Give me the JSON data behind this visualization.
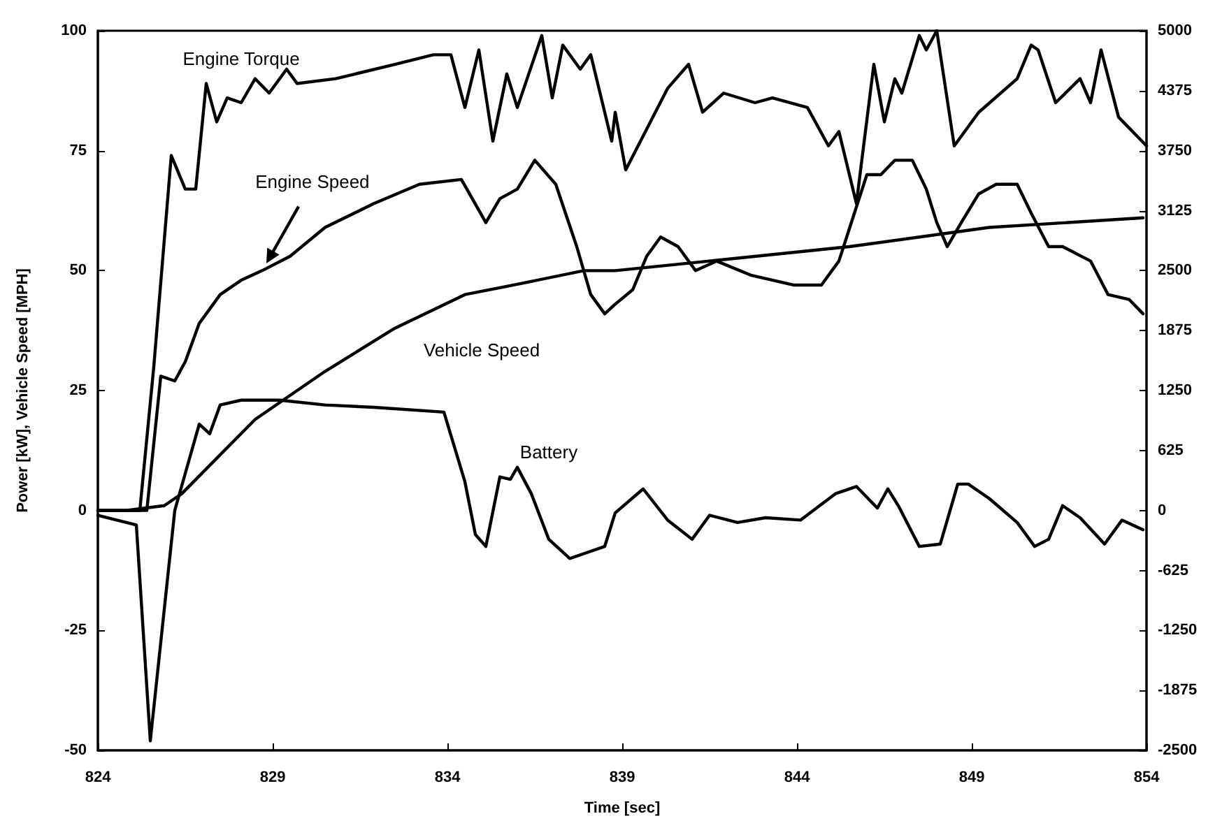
{
  "chart_data": {
    "type": "line",
    "xlabel": "Time [sec]",
    "ylabel": "Power [kW], Vehicle Speed [MPH]",
    "xlim": [
      824,
      854
    ],
    "xticks": [
      824,
      829,
      834,
      839,
      844,
      849,
      854
    ],
    "ylim": [
      -50,
      100
    ],
    "yticks": [
      -50,
      -25,
      0,
      25,
      50,
      75,
      100
    ],
    "y2lim": [
      -2500,
      5000
    ],
    "y2ticks": [
      -2500,
      -1875,
      -1250,
      -625,
      0,
      625,
      1250,
      1875,
      2500,
      3125,
      3750,
      4375,
      5000
    ],
    "grid": false,
    "legend": false,
    "marker": "none",
    "line_style": "solid",
    "series": [
      {
        "name": "Engine Torque",
        "color": "#000000",
        "x": [
          824,
          825.2,
          825.6,
          826.1,
          826.5,
          826.8,
          827.1,
          827.4,
          827.7,
          828.1,
          828.5,
          828.9,
          829.4,
          829.7,
          830.8,
          832.5,
          833.6,
          834.1,
          834.5,
          834.9,
          835.3,
          835.7,
          836.0,
          836.7,
          837.0,
          837.3,
          837.8,
          838.1,
          838.7,
          838.8,
          839.1,
          840.3,
          840.9,
          841.3,
          841.9,
          842.8,
          843.3,
          844.3,
          844.9,
          845.2,
          845.7,
          846.2,
          846.5,
          846.8,
          847.0,
          847.5,
          847.7,
          848.0,
          848.5,
          849.2,
          850.3,
          850.7,
          850.9,
          851.4,
          852.1,
          852.4,
          852.7,
          853.2,
          854
        ],
        "values": [
          0,
          0,
          30,
          74,
          67,
          67,
          89,
          81,
          86,
          85,
          90,
          87,
          92,
          89,
          90,
          93,
          95,
          95,
          84,
          96,
          77,
          91,
          84,
          99,
          86,
          97,
          92,
          95,
          77,
          83,
          71,
          88,
          93,
          83,
          87,
          85,
          86,
          84,
          76,
          79,
          64,
          93,
          81,
          90,
          87,
          99,
          96,
          100,
          76,
          83,
          90,
          97,
          96,
          85,
          90,
          85,
          96,
          82,
          76
        ]
      },
      {
        "name": "Engine Speed",
        "color": "#000000",
        "axis": "y2",
        "x": [
          824,
          825.4,
          825.8,
          826.2,
          826.5,
          826.9,
          827.5,
          828.1,
          828.7,
          829.5,
          830.5,
          831.9,
          833.2,
          834.4,
          835.1,
          835.5,
          836.0,
          836.5,
          837.1,
          837.7,
          838.1,
          838.5,
          838.8,
          839.3,
          839.7,
          840.1,
          840.6,
          841.1,
          841.7,
          842.7,
          843.9,
          844.7,
          845.2,
          845.6,
          846.0,
          846.4,
          846.8,
          847.3,
          847.7,
          848.0,
          848.3,
          848.7,
          849.2,
          849.7,
          850.3,
          850.7,
          851.2,
          851.6,
          852.4,
          852.9,
          853.5,
          853.9
        ],
        "values": [
          0,
          0,
          1400,
          1350,
          1550,
          1950,
          2250,
          2400,
          2500,
          2650,
          2950,
          3200,
          3400,
          3450,
          3000,
          3250,
          3350,
          3650,
          3400,
          2750,
          2250,
          2050,
          2150,
          2300,
          2650,
          2850,
          2750,
          2500,
          2600,
          2450,
          2350,
          2350,
          2600,
          3050,
          3500,
          3500,
          3650,
          3650,
          3350,
          3000,
          2750,
          3000,
          3300,
          3400,
          3400,
          3100,
          2750,
          2750,
          2600,
          2250,
          2200,
          2050
        ]
      },
      {
        "name": "Vehicle Speed",
        "color": "#000000",
        "x": [
          824,
          824.8,
          825.9,
          826.4,
          828.5,
          830.5,
          832.5,
          834.5,
          835.9,
          837.9,
          838.8,
          841.5,
          845.5,
          849.5,
          853.9
        ],
        "values": [
          0,
          0,
          1,
          3.5,
          19,
          29,
          38,
          45,
          47,
          50,
          50,
          52,
          55,
          59,
          61
        ]
      },
      {
        "name": "Battery",
        "color": "#000000",
        "x": [
          824,
          825.1,
          825.5,
          826.2,
          826.9,
          827.2,
          827.5,
          828.1,
          829.2,
          830.5,
          831.9,
          833.9,
          834.5,
          834.8,
          835.1,
          835.5,
          835.8,
          836.0,
          836.4,
          836.9,
          837.5,
          837.9,
          838.5,
          838.8,
          839.6,
          840.3,
          841.0,
          841.5,
          842.3,
          843.1,
          844.1,
          845.1,
          845.7,
          846.3,
          846.6,
          846.9,
          847.5,
          848.1,
          848.6,
          848.9,
          849.5,
          850.3,
          850.8,
          851.2,
          851.6,
          852.1,
          852.8,
          853.3,
          853.9
        ],
        "values": [
          -1,
          -3,
          -48,
          0,
          18,
          16,
          22,
          23,
          23,
          22,
          21.5,
          20.5,
          6,
          -5,
          -7.5,
          7,
          6.5,
          9,
          3.5,
          -6,
          -10,
          -9,
          -7.5,
          -0.5,
          4.5,
          -2,
          -6,
          -1,
          -2.5,
          -1.5,
          -2,
          3.5,
          5,
          0.5,
          4.5,
          1,
          -7.5,
          -7,
          5.5,
          5.5,
          2.5,
          -2.5,
          -7.5,
          -6,
          1,
          -1.5,
          -7,
          -2,
          -4
        ]
      }
    ]
  }
}
